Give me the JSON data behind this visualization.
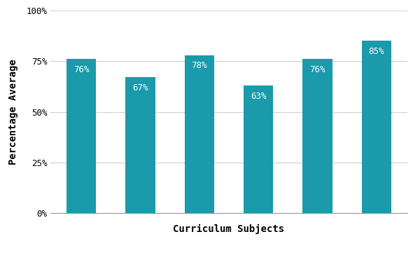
{
  "values": [
    76,
    67,
    78,
    63,
    76,
    85
  ],
  "bar_color": "#1a9aaa",
  "xlabel": "Curriculum Subjects",
  "ylabel": "Percentage Average",
  "ylim": [
    0,
    100
  ],
  "yticks": [
    0,
    25,
    50,
    75,
    100
  ],
  "ytick_labels": [
    "0%",
    "25%",
    "50%",
    "75%",
    "100%"
  ],
  "bar_label_color": "white",
  "bar_label_fontsize": 9,
  "xlabel_fontsize": 10,
  "ylabel_fontsize": 10,
  "background_color": "#ffffff",
  "grid_color": "#d0d0d0",
  "bar_width": 0.5
}
